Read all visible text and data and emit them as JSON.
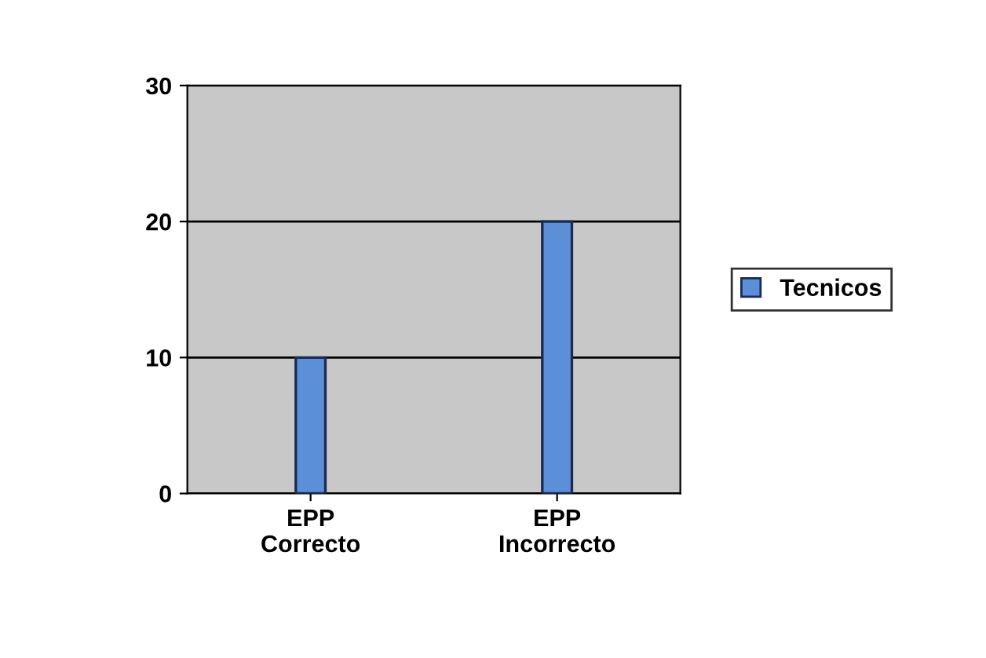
{
  "chart_data": {
    "type": "bar",
    "categories": [
      "EPP Correcto",
      "EPP Incorrecto"
    ],
    "series": [
      {
        "name": "Tecnicos",
        "color": "#5b8fd8",
        "values": [
          10,
          20
        ]
      }
    ],
    "ylim": [
      0,
      30
    ],
    "yticks": [
      0,
      10,
      20,
      30
    ],
    "grid": "y",
    "legend": "right"
  }
}
